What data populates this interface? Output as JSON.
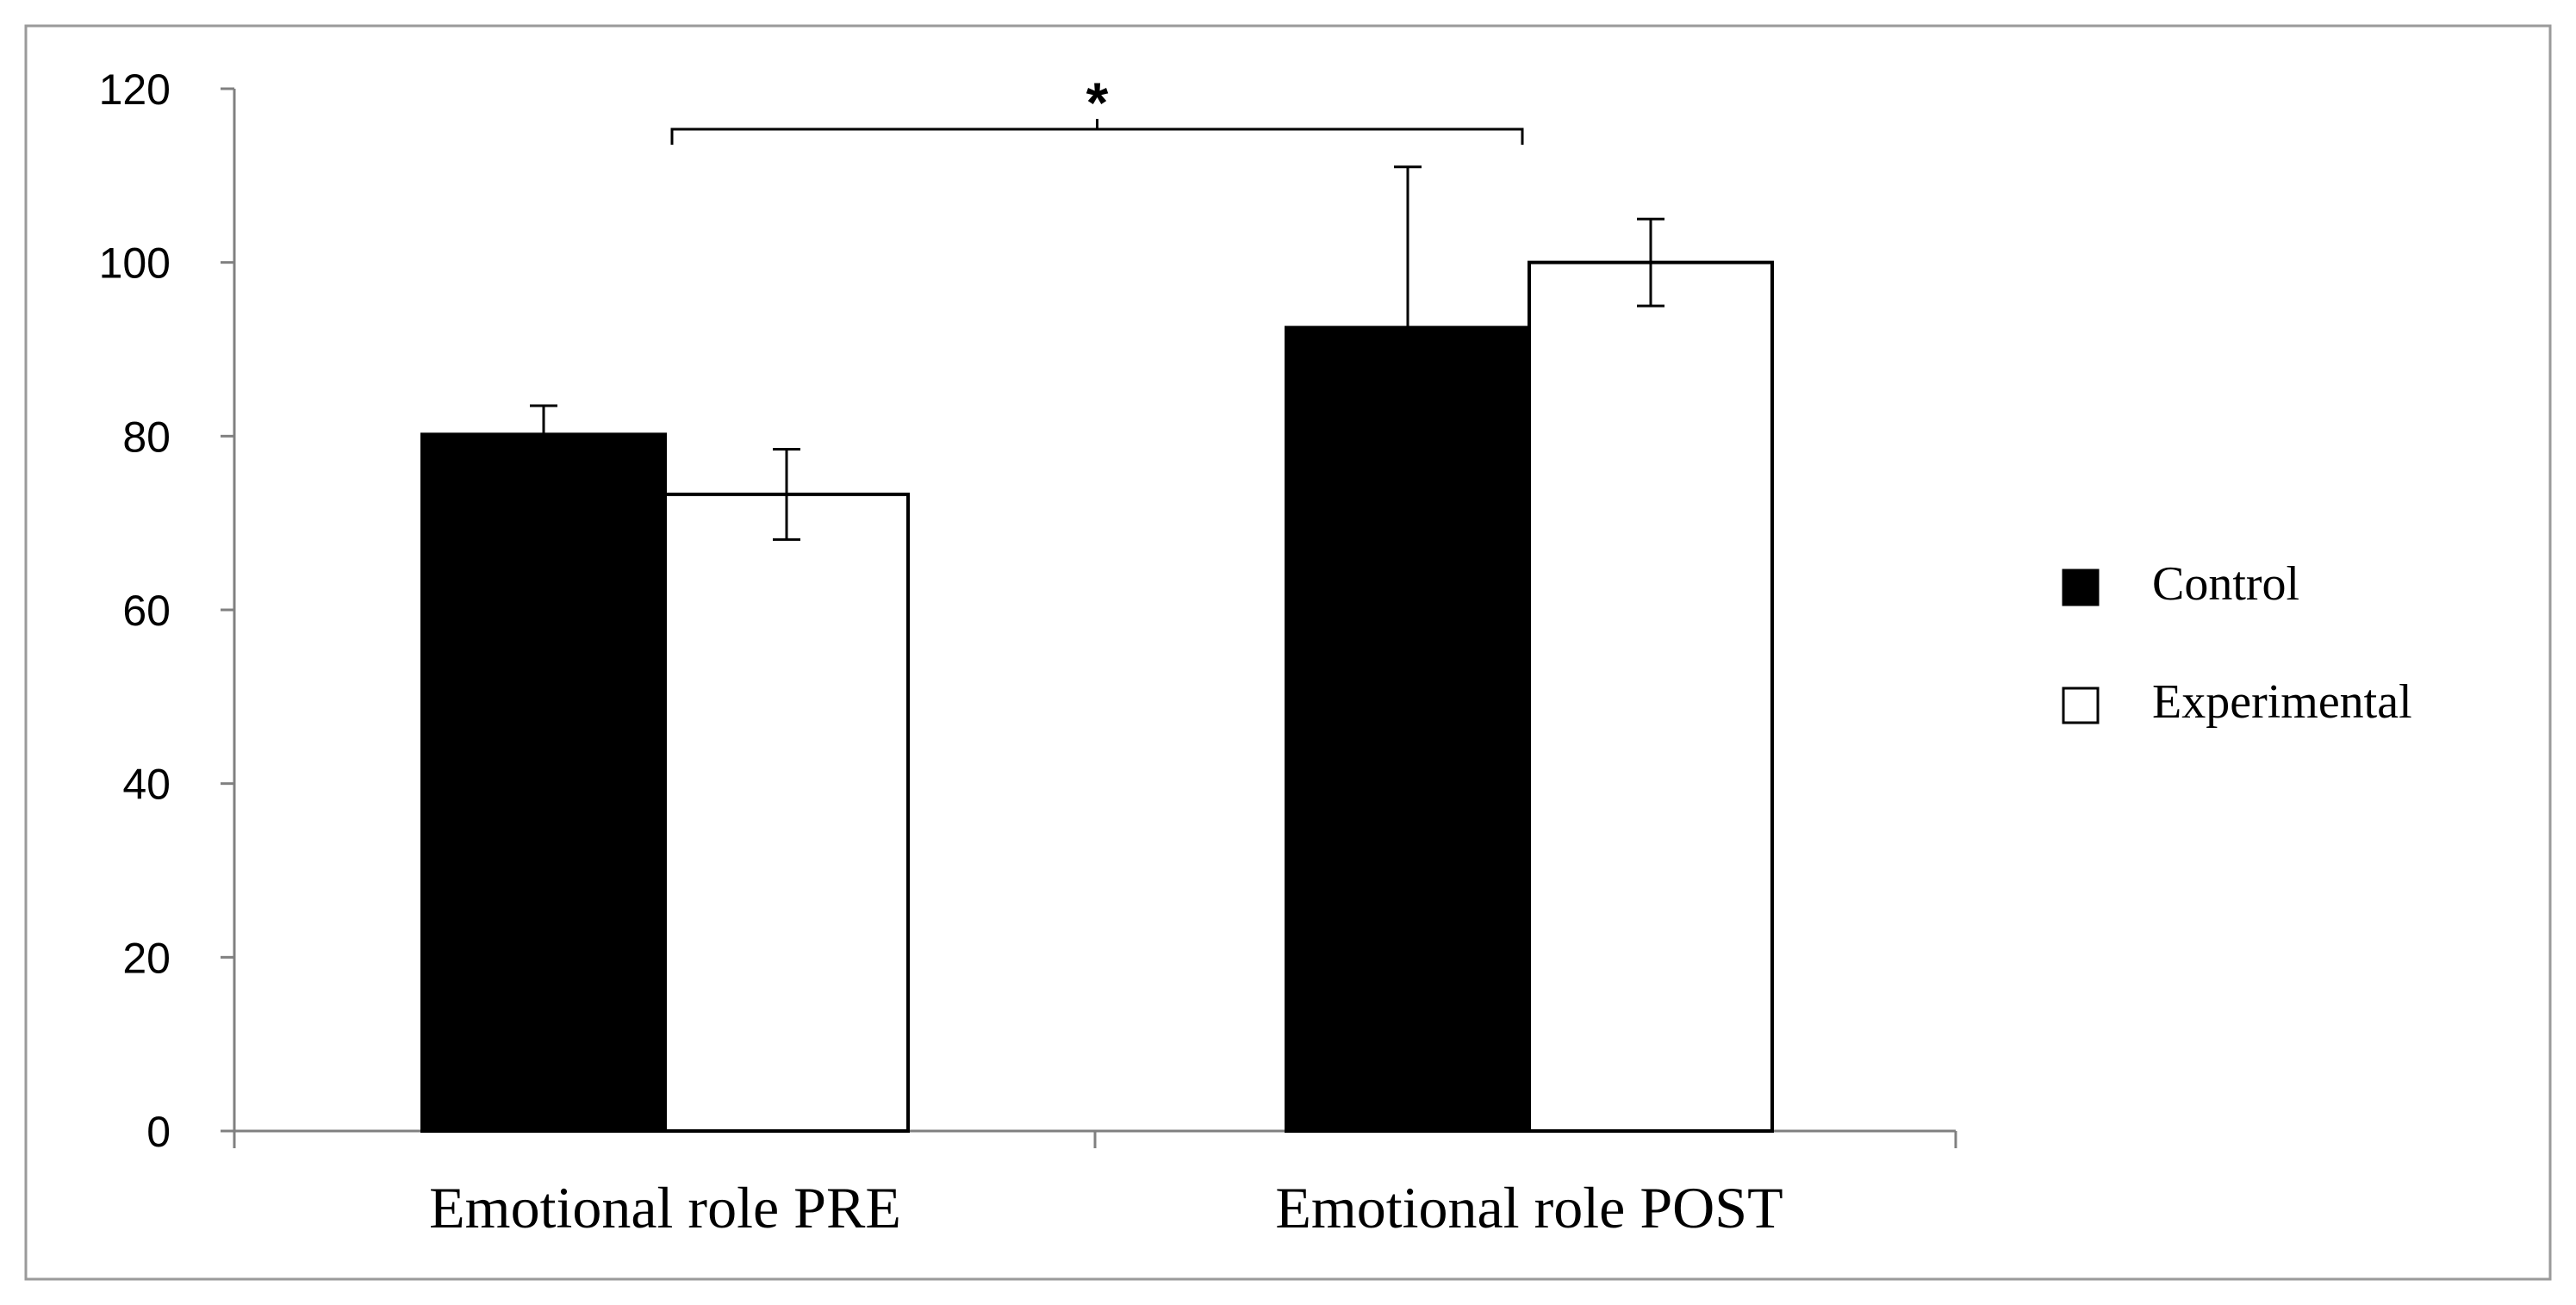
{
  "chart_data": {
    "type": "bar",
    "title": "",
    "xlabel": "",
    "ylabel": "",
    "ylim": [
      0,
      120
    ],
    "yticks": [
      0,
      20,
      40,
      60,
      80,
      100,
      120
    ],
    "grid": false,
    "legend_position": "right",
    "categories": [
      "Emotional role PRE",
      "Emotional role POST"
    ],
    "series": [
      {
        "name": "Control",
        "color": "#000000",
        "values": [
          80.2,
          92.5
        ],
        "errors": [
          3.3,
          18.5
        ]
      },
      {
        "name": "Experimental",
        "color": "#ffffff",
        "values": [
          73.3,
          100
        ],
        "errors": [
          5.2,
          5.0
        ]
      }
    ],
    "annotations": [
      {
        "text": "*",
        "type": "significance-bracket",
        "between": [
          "Emotional role PRE",
          "Emotional role POST"
        ]
      }
    ]
  }
}
